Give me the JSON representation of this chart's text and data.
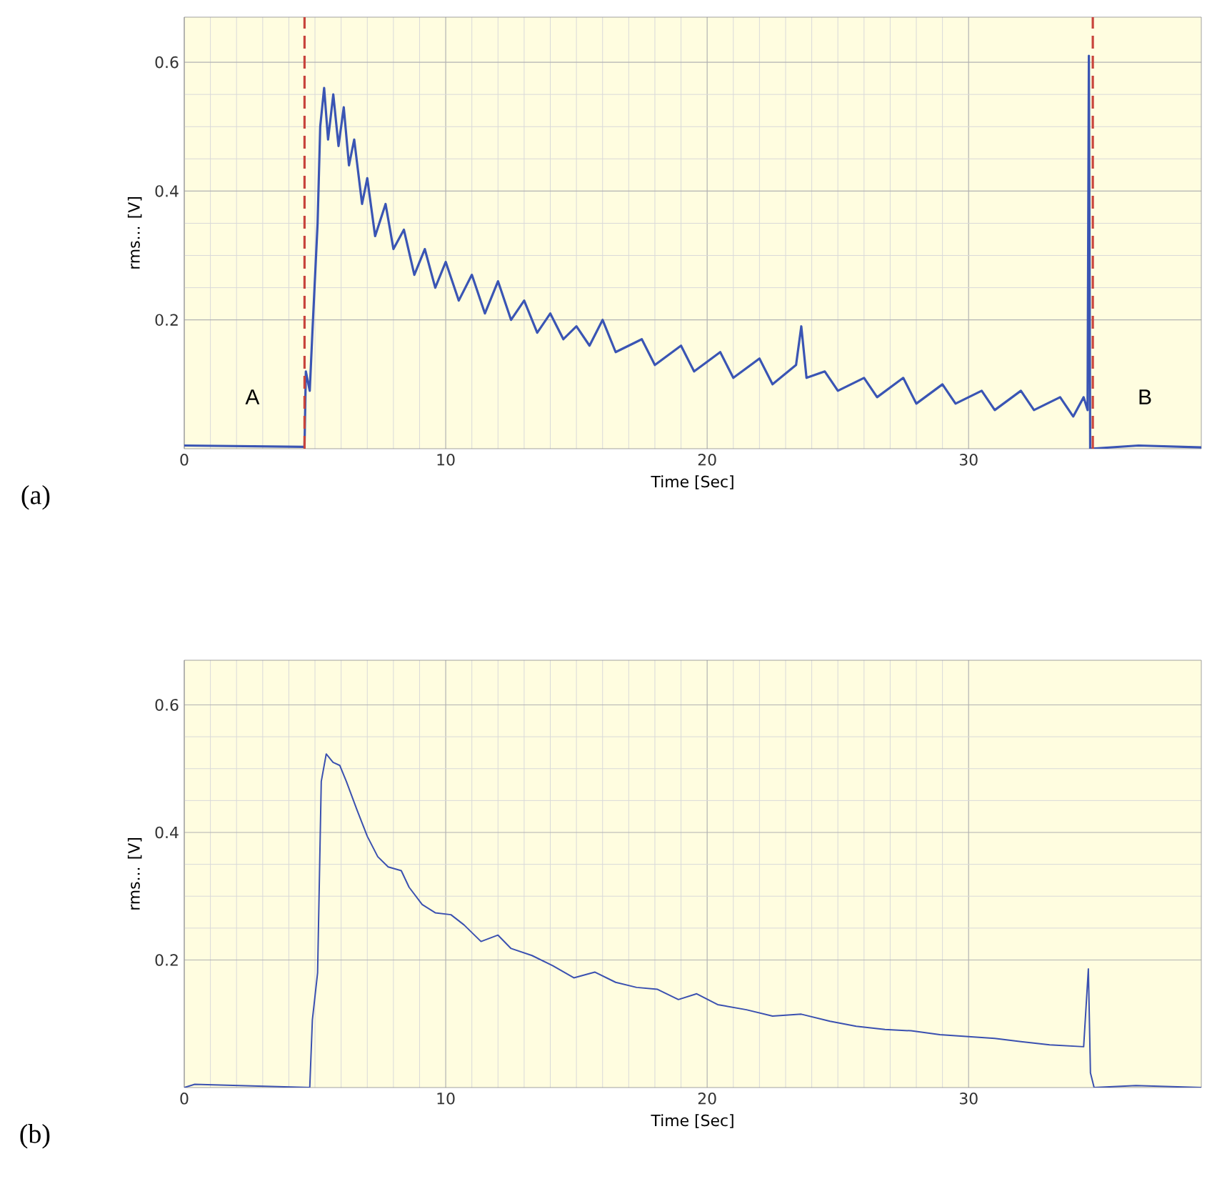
{
  "chart_data": [
    {
      "type": "line",
      "title": "(a)",
      "xlabel": "Time [Sec]",
      "ylabel": "rms... [V]",
      "xlim": [
        0,
        38.9
      ],
      "ylim": [
        0,
        0.67
      ],
      "xticks": [
        0,
        10,
        20,
        30
      ],
      "yticks": [
        0.2,
        0.4,
        0.6
      ],
      "grid": true,
      "series": [
        {
          "color": "#3a55b4",
          "x": [
            0,
            4.6,
            4.65,
            4.8,
            4.9,
            5.1,
            5.2,
            5.35,
            5.5,
            5.7,
            5.9,
            6.1,
            6.3,
            6.5,
            6.8,
            7.0,
            7.3,
            7.7,
            8.0,
            8.4,
            8.8,
            9.2,
            9.6,
            10.0,
            10.5,
            11.0,
            11.5,
            12.0,
            12.5,
            13.0,
            13.5,
            14.0,
            14.5,
            15.0,
            15.5,
            16.0,
            16.5,
            17.5,
            18.0,
            19.0,
            19.5,
            20.5,
            21.0,
            22.0,
            22.5,
            23.4,
            23.6,
            23.8,
            24.5,
            25.0,
            26.0,
            26.5,
            27.5,
            28.0,
            29.0,
            29.5,
            30.5,
            31.0,
            32.0,
            32.5,
            33.5,
            34.0,
            34.4,
            34.55,
            34.6,
            34.65,
            36.5,
            38.9
          ],
          "values": [
            0.005,
            0.003,
            0.12,
            0.09,
            0.18,
            0.35,
            0.5,
            0.56,
            0.48,
            0.55,
            0.47,
            0.53,
            0.44,
            0.48,
            0.38,
            0.42,
            0.33,
            0.38,
            0.31,
            0.34,
            0.27,
            0.31,
            0.25,
            0.29,
            0.23,
            0.27,
            0.21,
            0.26,
            0.2,
            0.23,
            0.18,
            0.21,
            0.17,
            0.19,
            0.16,
            0.2,
            0.15,
            0.17,
            0.13,
            0.16,
            0.12,
            0.15,
            0.11,
            0.14,
            0.1,
            0.13,
            0.19,
            0.11,
            0.12,
            0.09,
            0.11,
            0.08,
            0.11,
            0.07,
            0.1,
            0.07,
            0.09,
            0.06,
            0.09,
            0.06,
            0.08,
            0.05,
            0.08,
            0.06,
            0.61,
            0.0,
            0.005,
            0.002
          ]
        }
      ],
      "ref_lines": [
        {
          "axis": "x",
          "value": 4.6,
          "label": "A",
          "color": "#c8443c",
          "line_style": "dashed"
        },
        {
          "axis": "x",
          "value": 34.75,
          "label": "B",
          "color": "#c8443c",
          "line_style": "dashed"
        }
      ]
    },
    {
      "type": "line",
      "title": "(b)",
      "xlabel": "Time [Sec]",
      "ylabel": "rms... [V]",
      "xlim": [
        0,
        38.9
      ],
      "ylim": [
        0,
        0.67
      ],
      "xticks": [
        0,
        10,
        20,
        30
      ],
      "yticks": [
        0.2,
        0.4,
        0.6
      ],
      "grid": true,
      "series": [
        {
          "color": "#3a50b0",
          "x": [
            0,
            0.4,
            4.8,
            4.9,
            5.1,
            5.24,
            5.43,
            5.69,
            5.95,
            6.2,
            6.6,
            7.0,
            7.4,
            7.8,
            8.3,
            8.6,
            9.1,
            9.6,
            10.2,
            10.7,
            11.35,
            12.0,
            12.5,
            13.3,
            14.1,
            14.9,
            15.7,
            16.5,
            17.3,
            18.1,
            18.9,
            19.6,
            20.4,
            21.5,
            22.5,
            23.6,
            24.7,
            25.7,
            26.8,
            27.8,
            28.9,
            29.9,
            31.0,
            32.0,
            33.1,
            34.4,
            34.58,
            34.66,
            34.8,
            36.4,
            38.9
          ],
          "values": [
            0,
            0.005,
            0,
            0.106,
            0.18,
            0.48,
            0.523,
            0.51,
            0.505,
            0.48,
            0.436,
            0.394,
            0.362,
            0.346,
            0.34,
            0.314,
            0.287,
            0.274,
            0.271,
            0.255,
            0.229,
            0.239,
            0.218,
            0.207,
            0.191,
            0.172,
            0.181,
            0.165,
            0.157,
            0.154,
            0.138,
            0.147,
            0.13,
            0.122,
            0.112,
            0.115,
            0.104,
            0.096,
            0.091,
            0.089,
            0.083,
            0.08,
            0.077,
            0.072,
            0.067,
            0.064,
            0.186,
            0.023,
            0,
            0.003,
            0
          ]
        }
      ]
    }
  ]
}
